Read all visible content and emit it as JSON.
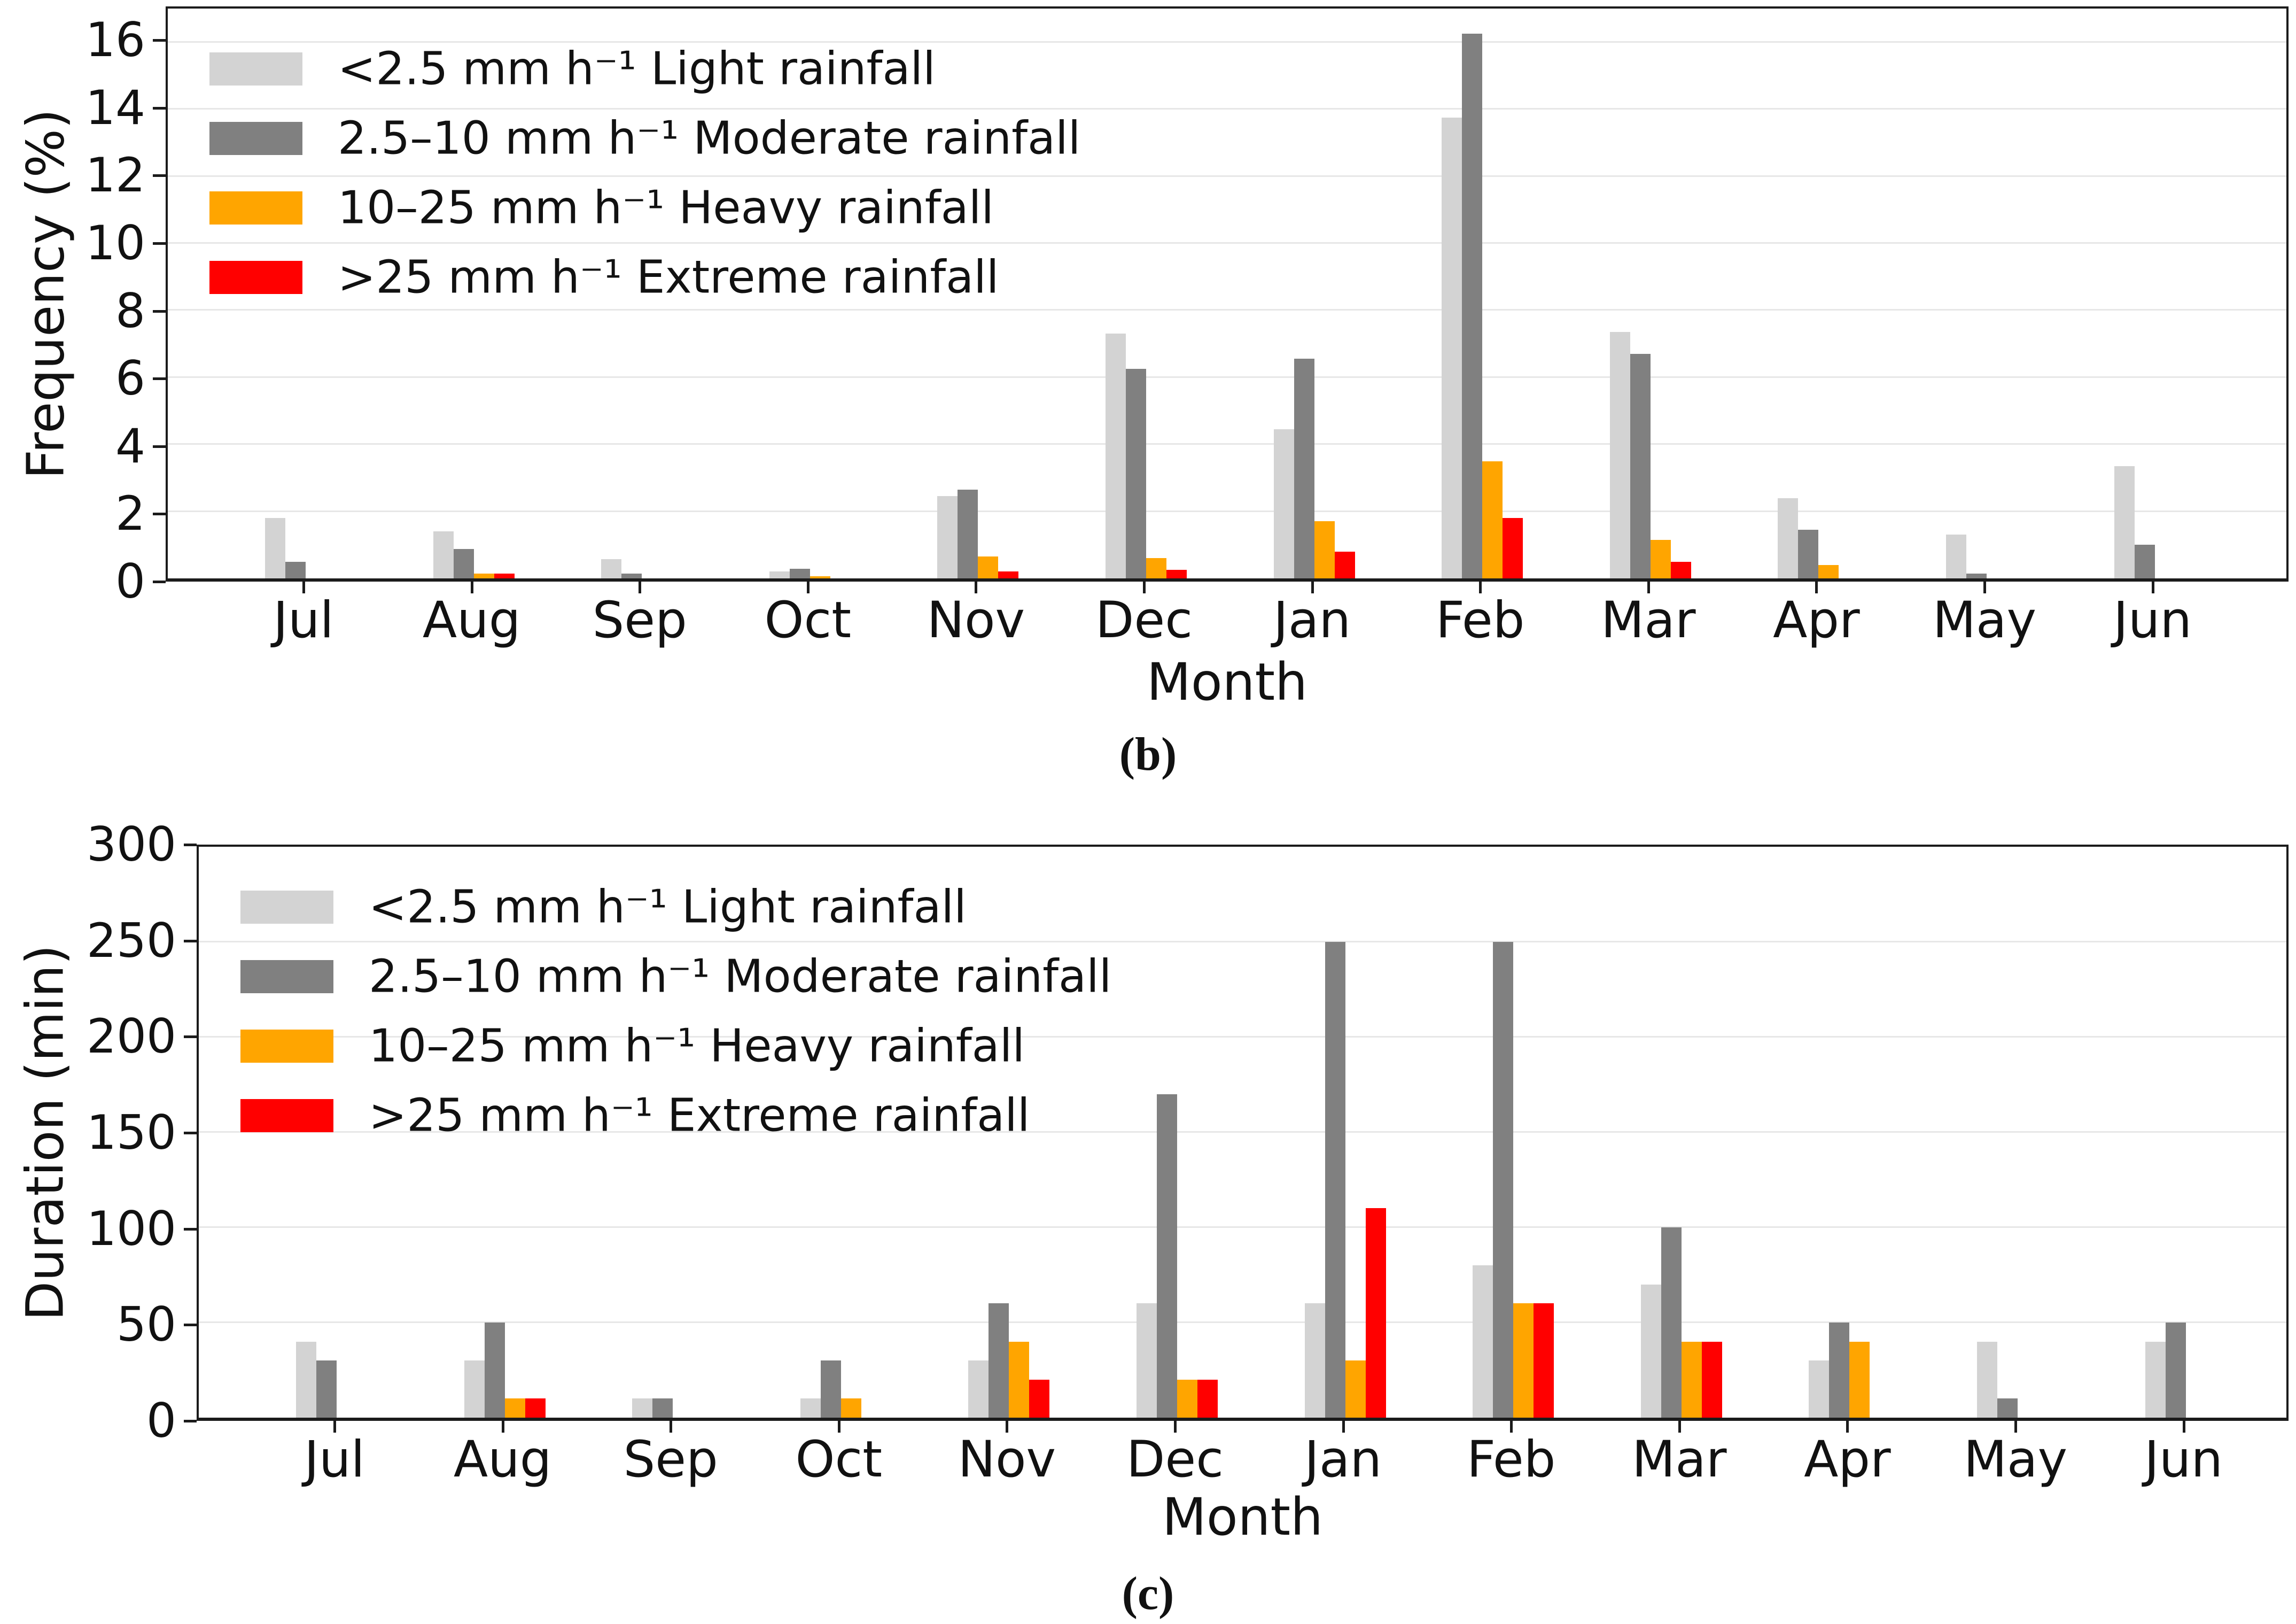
{
  "chart_data": [
    {
      "type": "bar",
      "panel_label": "(b)",
      "ylabel": "Frequency (%)",
      "xlabel": "Month",
      "categories": [
        "Jul",
        "Aug",
        "Sep",
        "Oct",
        "Nov",
        "Dec",
        "Jan",
        "Feb",
        "Mar",
        "Apr",
        "May",
        "Jun"
      ],
      "ylim": [
        0,
        17
      ],
      "yticks": [
        0,
        2,
        4,
        6,
        8,
        10,
        12,
        14,
        16
      ],
      "grid": true,
      "legend_position": "upper-left",
      "series": [
        {
          "name": "<2.5 mm h⁻¹ Light rainfall",
          "color": "#d3d3d3",
          "values": [
            1.8,
            1.4,
            0.58,
            0.2,
            2.45,
            7.3,
            4.45,
            13.75,
            7.35,
            2.4,
            1.3,
            3.35
          ]
        },
        {
          "name": "2.5–10 mm h⁻¹ Moderate rainfall",
          "color": "#808080",
          "values": [
            0.5,
            0.87,
            0.14,
            0.28,
            2.65,
            6.25,
            6.55,
            16.25,
            6.7,
            1.45,
            0.15,
            1.0
          ]
        },
        {
          "name": "10–25 mm h⁻¹ Heavy rainfall",
          "color": "#ffa500",
          "values": [
            0,
            0.15,
            0,
            0.06,
            0.65,
            0.6,
            1.7,
            3.5,
            1.15,
            0.4,
            0,
            0
          ]
        },
        {
          "name": ">25 mm h⁻¹ Extreme rainfall",
          "color": "#ff0000",
          "values": [
            0,
            0.15,
            0,
            0,
            0.2,
            0.25,
            0.8,
            1.8,
            0.5,
            0,
            0,
            0
          ]
        }
      ]
    },
    {
      "type": "bar",
      "panel_label": "(c)",
      "ylabel": "Duration (min)",
      "xlabel": "Month",
      "categories": [
        "Jul",
        "Aug",
        "Sep",
        "Oct",
        "Nov",
        "Dec",
        "Jan",
        "Feb",
        "Mar",
        "Apr",
        "May",
        "Jun"
      ],
      "ylim": [
        0,
        300
      ],
      "yticks": [
        0,
        50,
        100,
        150,
        200,
        250,
        300
      ],
      "grid": true,
      "legend_position": "upper-left",
      "series": [
        {
          "name": "<2.5 mm h⁻¹ Light rainfall",
          "color": "#d3d3d3",
          "values": [
            40,
            30,
            10,
            10,
            30,
            60,
            60,
            80,
            70,
            30,
            40,
            40
          ]
        },
        {
          "name": "2.5–10 mm h⁻¹ Moderate rainfall",
          "color": "#808080",
          "values": [
            30,
            50,
            10,
            30,
            60,
            170,
            250,
            250,
            100,
            50,
            10,
            50
          ]
        },
        {
          "name": "10–25 mm h⁻¹ Heavy rainfall",
          "color": "#ffa500",
          "values": [
            0,
            10,
            0,
            10,
            40,
            20,
            30,
            60,
            40,
            40,
            0,
            0
          ]
        },
        {
          "name": ">25 mm h⁻¹ Extreme rainfall",
          "color": "#ff0000",
          "values": [
            0,
            10,
            0,
            0,
            20,
            20,
            110,
            60,
            40,
            0,
            0,
            0
          ]
        }
      ]
    }
  ]
}
